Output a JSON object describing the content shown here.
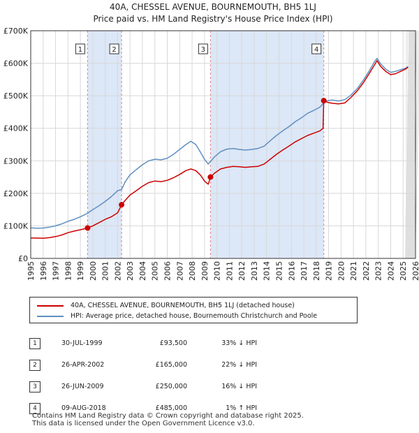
{
  "colors": {
    "price": "#cc0000",
    "hpi": "#5f8fc0",
    "band": "#dce7f7",
    "grid": "#d8d8d8",
    "vline": "#e08080"
  },
  "chart_data": {
    "type": "line",
    "title": "40A, CHESSEL AVENUE, BOURNEMOUTH, BH5 1LJ",
    "subtitle": "Price paid vs. HM Land Registry's House Price Index (HPI)",
    "xlim": [
      1995,
      2026
    ],
    "ylim": [
      0,
      700000
    ],
    "x_ticks": [
      "1995",
      "1996",
      "1997",
      "1998",
      "1999",
      "2000",
      "2001",
      "2002",
      "2003",
      "2004",
      "2005",
      "2006",
      "2007",
      "2008",
      "2009",
      "2010",
      "2011",
      "2012",
      "2013",
      "2014",
      "2015",
      "2016",
      "2017",
      "2018",
      "2019",
      "2020",
      "2021",
      "2022",
      "2023",
      "2024",
      "2025",
      "2026"
    ],
    "y_ticks": [
      {
        "value": 0,
        "label": "£0"
      },
      {
        "value": 100000,
        "label": "£100K"
      },
      {
        "value": 200000,
        "label": "£200K"
      },
      {
        "value": 300000,
        "label": "£300K"
      },
      {
        "value": 400000,
        "label": "£400K"
      },
      {
        "value": 500000,
        "label": "£500K"
      },
      {
        "value": 600000,
        "label": "£600K"
      },
      {
        "value": 700000,
        "label": "£700K"
      }
    ],
    "shaded_ranges": [
      [
        1999.58,
        2002.32
      ],
      [
        2009.48,
        2018.61
      ]
    ],
    "future_from": 2025.2,
    "series": [
      {
        "name": "40A, CHESSEL AVENUE, BOURNEMOUTH, BH5 1LJ (detached house)",
        "points": [
          [
            1995.0,
            63000
          ],
          [
            1995.5,
            62500
          ],
          [
            1996.0,
            62000
          ],
          [
            1996.5,
            64000
          ],
          [
            1997.0,
            67000
          ],
          [
            1997.5,
            72000
          ],
          [
            1998.0,
            79000
          ],
          [
            1998.5,
            84000
          ],
          [
            1999.0,
            88000
          ],
          [
            1999.58,
            93500
          ],
          [
            2000.0,
            100000
          ],
          [
            2000.5,
            110000
          ],
          [
            2001.0,
            120000
          ],
          [
            2001.5,
            128000
          ],
          [
            2002.0,
            140000
          ],
          [
            2002.32,
            165000
          ],
          [
            2002.6,
            178000
          ],
          [
            2003.0,
            195000
          ],
          [
            2003.5,
            208000
          ],
          [
            2004.0,
            222000
          ],
          [
            2004.5,
            233000
          ],
          [
            2005.0,
            238000
          ],
          [
            2005.5,
            236000
          ],
          [
            2006.0,
            240000
          ],
          [
            2006.5,
            248000
          ],
          [
            2007.0,
            258000
          ],
          [
            2007.5,
            270000
          ],
          [
            2007.9,
            275000
          ],
          [
            2008.3,
            270000
          ],
          [
            2008.7,
            255000
          ],
          [
            2009.0,
            238000
          ],
          [
            2009.3,
            228000
          ],
          [
            2009.48,
            250000
          ],
          [
            2009.8,
            262000
          ],
          [
            2010.3,
            275000
          ],
          [
            2010.8,
            280000
          ],
          [
            2011.3,
            283000
          ],
          [
            2011.8,
            282000
          ],
          [
            2012.3,
            280000
          ],
          [
            2012.8,
            282000
          ],
          [
            2013.3,
            283000
          ],
          [
            2013.8,
            290000
          ],
          [
            2014.3,
            305000
          ],
          [
            2014.8,
            320000
          ],
          [
            2015.3,
            333000
          ],
          [
            2015.8,
            345000
          ],
          [
            2016.3,
            358000
          ],
          [
            2016.8,
            368000
          ],
          [
            2017.3,
            378000
          ],
          [
            2017.8,
            385000
          ],
          [
            2018.3,
            392000
          ],
          [
            2018.55,
            400000
          ],
          [
            2018.61,
            485000
          ],
          [
            2018.9,
            480000
          ],
          [
            2019.3,
            477000
          ],
          [
            2019.8,
            475000
          ],
          [
            2020.3,
            478000
          ],
          [
            2020.8,
            495000
          ],
          [
            2021.3,
            515000
          ],
          [
            2021.8,
            540000
          ],
          [
            2022.3,
            570000
          ],
          [
            2022.7,
            595000
          ],
          [
            2022.9,
            608000
          ],
          [
            2023.2,
            590000
          ],
          [
            2023.6,
            575000
          ],
          [
            2024.0,
            565000
          ],
          [
            2024.4,
            568000
          ],
          [
            2024.8,
            575000
          ],
          [
            2025.2,
            582000
          ],
          [
            2025.4,
            588000
          ]
        ]
      },
      {
        "name": "HPI: Average price, detached house, Bournemouth Christchurch and Poole",
        "points": [
          [
            1995.0,
            94000
          ],
          [
            1995.5,
            93000
          ],
          [
            1996.0,
            93500
          ],
          [
            1996.5,
            96000
          ],
          [
            1997.0,
            100000
          ],
          [
            1997.5,
            106000
          ],
          [
            1998.0,
            114000
          ],
          [
            1998.5,
            120000
          ],
          [
            1999.0,
            128000
          ],
          [
            1999.58,
            139000
          ],
          [
            2000.0,
            150000
          ],
          [
            2000.5,
            162000
          ],
          [
            2001.0,
            175000
          ],
          [
            2001.5,
            190000
          ],
          [
            2002.0,
            208000
          ],
          [
            2002.32,
            212000
          ],
          [
            2002.6,
            235000
          ],
          [
            2003.0,
            257000
          ],
          [
            2003.5,
            273000
          ],
          [
            2004.0,
            288000
          ],
          [
            2004.5,
            300000
          ],
          [
            2005.0,
            305000
          ],
          [
            2005.5,
            303000
          ],
          [
            2006.0,
            308000
          ],
          [
            2006.5,
            320000
          ],
          [
            2007.0,
            335000
          ],
          [
            2007.5,
            350000
          ],
          [
            2007.9,
            360000
          ],
          [
            2008.3,
            350000
          ],
          [
            2008.7,
            325000
          ],
          [
            2009.0,
            305000
          ],
          [
            2009.3,
            290000
          ],
          [
            2009.48,
            298000
          ],
          [
            2009.8,
            312000
          ],
          [
            2010.3,
            328000
          ],
          [
            2010.8,
            336000
          ],
          [
            2011.3,
            338000
          ],
          [
            2011.8,
            335000
          ],
          [
            2012.3,
            333000
          ],
          [
            2012.8,
            335000
          ],
          [
            2013.3,
            338000
          ],
          [
            2013.8,
            345000
          ],
          [
            2014.3,
            362000
          ],
          [
            2014.8,
            378000
          ],
          [
            2015.3,
            392000
          ],
          [
            2015.8,
            405000
          ],
          [
            2016.3,
            420000
          ],
          [
            2016.8,
            432000
          ],
          [
            2017.3,
            446000
          ],
          [
            2017.8,
            455000
          ],
          [
            2018.3,
            465000
          ],
          [
            2018.61,
            478000
          ],
          [
            2018.9,
            485000
          ],
          [
            2019.3,
            487000
          ],
          [
            2019.8,
            484000
          ],
          [
            2020.3,
            488000
          ],
          [
            2020.8,
            502000
          ],
          [
            2021.3,
            522000
          ],
          [
            2021.8,
            548000
          ],
          [
            2022.3,
            578000
          ],
          [
            2022.7,
            605000
          ],
          [
            2022.9,
            615000
          ],
          [
            2023.2,
            598000
          ],
          [
            2023.6,
            582000
          ],
          [
            2024.0,
            572000
          ],
          [
            2024.4,
            575000
          ],
          [
            2024.8,
            580000
          ],
          [
            2025.2,
            585000
          ],
          [
            2025.4,
            590000
          ]
        ]
      }
    ],
    "transactions": [
      {
        "num": "1",
        "date": "30-JUL-1999",
        "price": "£93,500",
        "hpi": "33% ↓ HPI",
        "x": 1999.58,
        "value": 93500
      },
      {
        "num": "2",
        "date": "26-APR-2002",
        "price": "£165,000",
        "hpi": "22% ↓ HPI",
        "x": 2002.32,
        "value": 165000
      },
      {
        "num": "3",
        "date": "26-JUN-2009",
        "price": "£250,000",
        "hpi": "16% ↓ HPI",
        "x": 2009.48,
        "value": 250000
      },
      {
        "num": "4",
        "date": "09-AUG-2018",
        "price": "£485,000",
        "hpi": "1% ↑ HPI",
        "x": 2018.61,
        "value": 485000
      }
    ]
  },
  "footer": {
    "line1": "Contains HM Land Registry data © Crown copyright and database right 2025.",
    "line2": "This data is licensed under the Open Government Licence v3.0."
  }
}
